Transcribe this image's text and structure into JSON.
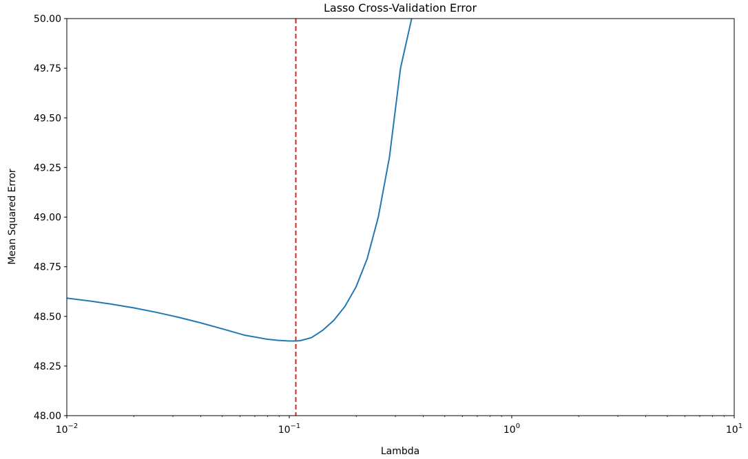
{
  "chart_data": {
    "type": "line",
    "title": "Lasso Cross-Validation Error",
    "xlabel": "Lambda",
    "ylabel": "Mean Squared Error",
    "xscale": "log",
    "xlim": [
      0.01,
      10
    ],
    "ylim": [
      48.0,
      50.0
    ],
    "xticks": [
      {
        "value": 0.01,
        "base": "10",
        "exp": "−2"
      },
      {
        "value": 0.1,
        "base": "10",
        "exp": "−1"
      },
      {
        "value": 1,
        "base": "10",
        "exp": "0"
      },
      {
        "value": 10,
        "base": "10",
        "exp": "1"
      }
    ],
    "yticks": [
      "48.00",
      "48.25",
      "48.50",
      "48.75",
      "49.00",
      "49.25",
      "49.50",
      "49.75",
      "50.00"
    ],
    "grid": false,
    "legend": "none",
    "series": [
      {
        "color": "#1f77b4",
        "x": [
          0.01,
          0.0126,
          0.0158,
          0.02,
          0.0251,
          0.0316,
          0.0398,
          0.0501,
          0.0631,
          0.0794,
          0.0891,
          0.1,
          0.107,
          0.1122,
          0.1259,
          0.1413,
          0.1585,
          0.1778,
          0.1995,
          0.2239,
          0.2512,
          0.2818,
          0.3162,
          0.3311,
          0.3467,
          0.3548,
          0.36
        ],
        "y": [
          48.592,
          48.578,
          48.562,
          48.543,
          48.521,
          48.496,
          48.468,
          48.437,
          48.405,
          48.385,
          48.379,
          48.376,
          48.376,
          48.378,
          48.393,
          48.43,
          48.48,
          48.55,
          48.648,
          48.79,
          49.0,
          49.3,
          49.75,
          49.85,
          49.95,
          50.0,
          50.02
        ]
      }
    ],
    "reference_lines": [
      {
        "orientation": "vertical",
        "x": 0.107,
        "color": "#d62728",
        "style": "dashed"
      }
    ]
  }
}
